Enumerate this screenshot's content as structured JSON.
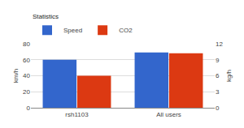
{
  "chart_data": {
    "type": "bar",
    "categories": [
      "rsh1103",
      "All users"
    ],
    "series": [
      {
        "name": "Speed",
        "color": "#3366cc",
        "values": [
          60,
          69
        ]
      },
      {
        "name": "CO2",
        "color": "#dc3912",
        "values": [
          6,
          10.2
        ],
        "axis": "y2"
      }
    ],
    "legend_title": "Statistics",
    "legend": "top-left",
    "ylabel": "km/h",
    "ylim": [
      0,
      80
    ],
    "yticks": [
      0,
      20,
      40,
      60,
      80
    ],
    "y2label": "kg/h",
    "y2lim": [
      0,
      12
    ],
    "y2ticks": [
      0,
      3,
      6,
      9,
      12
    ],
    "grid": true
  }
}
